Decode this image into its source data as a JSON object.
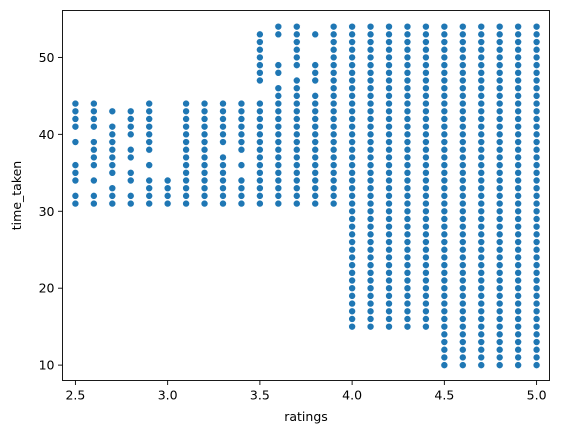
{
  "chart_data": {
    "type": "scatter",
    "title": "",
    "xlabel": "ratings",
    "ylabel": "time_taken",
    "xlim": [
      2.43,
      5.07
    ],
    "ylim": [
      8.0,
      56.1
    ],
    "xticks": [
      2.5,
      3.0,
      3.5,
      4.0,
      4.5,
      5.0
    ],
    "xtick_labels": [
      "2.5",
      "3.0",
      "3.5",
      "4.0",
      "4.5",
      "5.0"
    ],
    "yticks": [
      10,
      20,
      30,
      40,
      50
    ],
    "ytick_labels": [
      "10",
      "20",
      "30",
      "40",
      "50"
    ],
    "grid": false,
    "legend": null,
    "marker_color": "#1f77b4",
    "points": [
      {
        "x": 2.5,
        "y": [
          31,
          32,
          34,
          35,
          36,
          39,
          41,
          42,
          43,
          44
        ]
      },
      {
        "x": 2.6,
        "y": [
          31,
          32,
          34,
          36,
          37,
          38,
          39,
          41,
          42,
          43,
          44
        ]
      },
      {
        "x": 2.7,
        "y": [
          31,
          32,
          33,
          35,
          36,
          37,
          38,
          39,
          40,
          41,
          43
        ]
      },
      {
        "x": 2.8,
        "y": [
          31,
          32,
          34,
          35,
          37,
          38,
          40,
          41,
          42,
          43
        ]
      },
      {
        "x": 2.9,
        "y": [
          31,
          32,
          33,
          34,
          36,
          38,
          39,
          40,
          41,
          42,
          43,
          44
        ]
      },
      {
        "x": 3.0,
        "y": [
          31,
          32,
          33,
          34
        ]
      },
      {
        "x": 3.1,
        "y": [
          31,
          32,
          33,
          34,
          35,
          36,
          37,
          38,
          39,
          40,
          41,
          42,
          43,
          44
        ]
      },
      {
        "x": 3.2,
        "y": [
          31,
          32,
          33,
          34,
          35,
          36,
          37,
          38,
          39,
          40,
          41,
          42,
          43,
          44
        ]
      },
      {
        "x": 3.3,
        "y": [
          31,
          32,
          33,
          34,
          35,
          36,
          37,
          39,
          40,
          41,
          42,
          43,
          44
        ]
      },
      {
        "x": 3.4,
        "y": [
          31,
          32,
          33,
          34,
          36,
          38,
          39,
          40,
          41,
          42,
          43,
          44
        ]
      },
      {
        "x": 3.5,
        "y": [
          31,
          32,
          33,
          34,
          35,
          36,
          37,
          38,
          39,
          40,
          41,
          42,
          43,
          44,
          47,
          48,
          49,
          50,
          51,
          52,
          53
        ]
      },
      {
        "x": 3.6,
        "y": [
          31,
          32,
          33,
          34,
          35,
          36,
          37,
          38,
          39,
          40,
          41,
          42,
          43,
          44,
          45,
          46,
          48,
          49,
          53,
          54
        ]
      },
      {
        "x": 3.7,
        "y": [
          31,
          32,
          33,
          34,
          35,
          36,
          37,
          38,
          39,
          40,
          41,
          42,
          43,
          44,
          45,
          46,
          47,
          49,
          50,
          51,
          52,
          53,
          54
        ]
      },
      {
        "x": 3.8,
        "y": [
          31,
          32,
          33,
          34,
          35,
          36,
          37,
          38,
          39,
          40,
          41,
          42,
          43,
          44,
          45,
          47,
          48,
          49,
          53
        ]
      },
      {
        "x": 3.9,
        "y": [
          31,
          32,
          33,
          34,
          35,
          36,
          37,
          38,
          39,
          40,
          41,
          42,
          43,
          44,
          45,
          46,
          47,
          48,
          49,
          50,
          51,
          52,
          53,
          54
        ]
      },
      {
        "x": 4.0,
        "y": [
          15,
          16,
          17,
          18,
          19,
          20,
          21,
          22,
          23,
          24,
          25,
          26,
          27,
          28,
          29,
          30,
          31,
          32,
          33,
          34,
          35,
          36,
          37,
          38,
          39,
          40,
          41,
          42,
          43,
          44,
          45,
          46,
          47,
          48,
          49,
          50,
          51,
          52,
          53,
          54
        ]
      },
      {
        "x": 4.1,
        "y": [
          15,
          16,
          17,
          18,
          19,
          20,
          21,
          22,
          23,
          24,
          25,
          26,
          27,
          28,
          29,
          30,
          31,
          32,
          33,
          34,
          35,
          36,
          37,
          38,
          39,
          40,
          41,
          42,
          43,
          44,
          45,
          46,
          47,
          48,
          49,
          50,
          51,
          52,
          53,
          54
        ]
      },
      {
        "x": 4.2,
        "y": [
          15,
          16,
          17,
          18,
          19,
          20,
          21,
          22,
          23,
          24,
          25,
          26,
          27,
          28,
          29,
          30,
          31,
          32,
          33,
          34,
          35,
          36,
          37,
          38,
          39,
          40,
          41,
          42,
          43,
          44,
          45,
          46,
          47,
          48,
          49,
          50,
          51,
          52,
          53,
          54
        ]
      },
      {
        "x": 4.3,
        "y": [
          15,
          16,
          17,
          18,
          19,
          20,
          21,
          22,
          23,
          24,
          25,
          26,
          27,
          28,
          29,
          30,
          31,
          32,
          33,
          34,
          35,
          36,
          37,
          38,
          39,
          40,
          41,
          42,
          43,
          44,
          45,
          46,
          47,
          48,
          49,
          50,
          51,
          52,
          53,
          54
        ]
      },
      {
        "x": 4.4,
        "y": [
          15,
          16,
          17,
          18,
          19,
          20,
          21,
          22,
          23,
          24,
          25,
          26,
          27,
          28,
          29,
          30,
          31,
          32,
          33,
          34,
          35,
          36,
          37,
          38,
          39,
          40,
          41,
          42,
          43,
          44,
          45,
          46,
          47,
          48,
          49,
          50,
          51,
          52,
          53,
          54
        ]
      },
      {
        "x": 4.5,
        "y": [
          10,
          11,
          12,
          13,
          14,
          15,
          16,
          17,
          18,
          19,
          20,
          21,
          22,
          23,
          24,
          25,
          26,
          27,
          28,
          29,
          30,
          31,
          32,
          33,
          34,
          35,
          36,
          37,
          38,
          39,
          40,
          41,
          42,
          43,
          44,
          45,
          46,
          47,
          48,
          49,
          50,
          51,
          52,
          53,
          54
        ]
      },
      {
        "x": 4.6,
        "y": [
          10,
          11,
          12,
          13,
          14,
          15,
          16,
          17,
          18,
          19,
          20,
          21,
          22,
          23,
          24,
          25,
          26,
          27,
          28,
          29,
          30,
          31,
          32,
          33,
          34,
          35,
          36,
          37,
          38,
          39,
          40,
          41,
          42,
          43,
          44,
          45,
          46,
          47,
          48,
          49,
          50,
          51,
          52,
          53,
          54
        ]
      },
      {
        "x": 4.7,
        "y": [
          10,
          11,
          12,
          13,
          14,
          15,
          16,
          17,
          18,
          19,
          20,
          21,
          22,
          23,
          24,
          25,
          26,
          27,
          28,
          29,
          30,
          31,
          32,
          33,
          34,
          35,
          36,
          37,
          38,
          39,
          40,
          41,
          42,
          43,
          44,
          45,
          46,
          47,
          48,
          49,
          50,
          51,
          52,
          53,
          54
        ]
      },
      {
        "x": 4.8,
        "y": [
          10,
          11,
          12,
          13,
          14,
          15,
          16,
          17,
          18,
          19,
          20,
          21,
          22,
          23,
          24,
          25,
          26,
          27,
          28,
          29,
          30,
          31,
          32,
          33,
          34,
          35,
          36,
          37,
          38,
          39,
          40,
          41,
          42,
          43,
          44,
          45,
          46,
          47,
          48,
          49,
          50,
          51,
          52,
          53,
          54
        ]
      },
      {
        "x": 4.9,
        "y": [
          10,
          11,
          12,
          13,
          14,
          15,
          16,
          17,
          18,
          19,
          20,
          21,
          22,
          23,
          24,
          25,
          26,
          27,
          28,
          29,
          30,
          31,
          32,
          33,
          34,
          35,
          36,
          37,
          38,
          39,
          40,
          41,
          42,
          43,
          44,
          45,
          46,
          47,
          48,
          49,
          50,
          51,
          52,
          53,
          54
        ]
      },
      {
        "x": 5.0,
        "y": [
          10,
          11,
          12,
          13,
          14,
          15,
          16,
          17,
          18,
          19,
          20,
          21,
          22,
          23,
          24,
          25,
          26,
          27,
          28,
          29,
          30,
          31,
          32,
          33,
          34,
          35,
          36,
          37,
          38,
          39,
          40,
          41,
          42,
          43,
          44,
          45,
          46,
          47,
          48,
          49,
          50,
          51,
          52,
          53,
          54
        ]
      }
    ]
  }
}
